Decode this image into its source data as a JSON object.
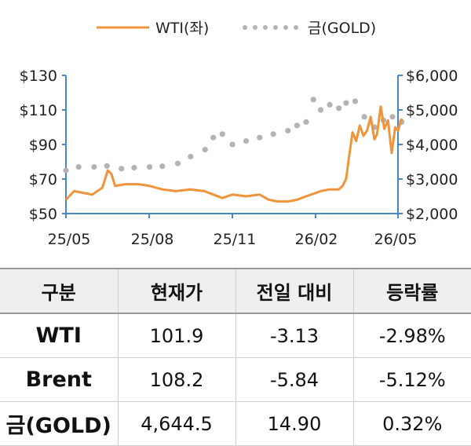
{
  "chart_data": {
    "type": "line",
    "legend": [
      "WTI(좌)",
      "금(GOLD)"
    ],
    "legend_position": "top-center",
    "x_tick_labels": [
      "25/05",
      "25/08",
      "25/11",
      "26/02",
      "26/05"
    ],
    "y_left": {
      "ticks": [
        "$130",
        "$110",
        "$90",
        "$70",
        "$50"
      ],
      "range": [
        50,
        130
      ]
    },
    "y_right": {
      "ticks": [
        "$6,000",
        "$5,000",
        "$4,000",
        "$3,000",
        "$2,000"
      ],
      "range": [
        2000,
        6000
      ]
    },
    "grid": false,
    "series": [
      {
        "name": "WTI(좌)",
        "axis": "left",
        "color": "#f0943c",
        "style": "solid",
        "x": [
          "2025-05-01",
          "2025-05-10",
          "2025-05-20",
          "2025-05-30",
          "2025-06-10",
          "2025-06-16",
          "2025-06-20",
          "2025-06-24",
          "2025-07-05",
          "2025-07-20",
          "2025-08-01",
          "2025-08-15",
          "2025-08-30",
          "2025-09-15",
          "2025-09-30",
          "2025-10-10",
          "2025-10-20",
          "2025-10-31",
          "2025-11-15",
          "2025-11-30",
          "2025-12-10",
          "2025-12-20",
          "2025-12-31",
          "2026-01-10",
          "2026-01-20",
          "2026-01-31",
          "2026-02-05",
          "2026-02-15",
          "2026-02-25",
          "2026-03-01",
          "2026-03-05",
          "2026-03-08",
          "2026-03-12",
          "2026-03-16",
          "2026-03-20",
          "2026-03-24",
          "2026-03-28",
          "2026-04-01",
          "2026-04-05",
          "2026-04-08",
          "2026-04-12",
          "2026-04-16",
          "2026-04-20",
          "2026-04-24",
          "2026-04-28",
          "2026-05-01",
          "2026-05-05"
        ],
        "y": [
          58,
          63,
          62,
          61,
          65,
          75,
          73,
          66,
          67,
          67,
          66,
          64,
          63,
          64,
          63,
          61,
          59,
          61,
          60,
          61,
          58,
          57,
          57,
          58,
          60,
          62,
          63,
          64,
          64,
          66,
          70,
          82,
          97,
          92,
          101,
          95,
          98,
          106,
          93,
          96,
          112,
          99,
          104,
          85,
          100,
          98,
          105
        ]
      },
      {
        "name": "금(GOLD)",
        "axis": "right",
        "color": "#b3b3b3",
        "style": "dotted",
        "x": [
          "2025-05-01",
          "2025-05-15",
          "2025-06-01",
          "2025-06-15",
          "2025-07-01",
          "2025-07-15",
          "2025-08-01",
          "2025-08-15",
          "2025-09-01",
          "2025-09-15",
          "2025-10-01",
          "2025-10-10",
          "2025-10-20",
          "2025-10-31",
          "2025-11-15",
          "2025-11-30",
          "2025-12-15",
          "2025-12-31",
          "2026-01-10",
          "2026-01-20",
          "2026-01-28",
          "2026-02-05",
          "2026-02-15",
          "2026-02-25",
          "2026-03-05",
          "2026-03-15",
          "2026-03-25",
          "2026-04-05",
          "2026-04-15",
          "2026-04-25",
          "2026-05-05"
        ],
        "y": [
          3250,
          3350,
          3350,
          3380,
          3300,
          3330,
          3350,
          3370,
          3450,
          3650,
          3850,
          4200,
          4300,
          4000,
          4100,
          4200,
          4300,
          4400,
          4550,
          4650,
          5300,
          5000,
          5150,
          5050,
          5200,
          5250,
          4800,
          4500,
          4700,
          4800,
          4650
        ]
      }
    ]
  },
  "table": {
    "headers": [
      "구분",
      "현재가",
      "전일 대비",
      "등락률"
    ],
    "rows": [
      [
        "WTI",
        "101.9",
        "-3.13",
        "-2.98%"
      ],
      [
        "Brent",
        "108.2",
        "-5.84",
        "-5.12%"
      ],
      [
        "금(GOLD)",
        "4,644.5",
        "14.90",
        "0.32%"
      ]
    ]
  }
}
